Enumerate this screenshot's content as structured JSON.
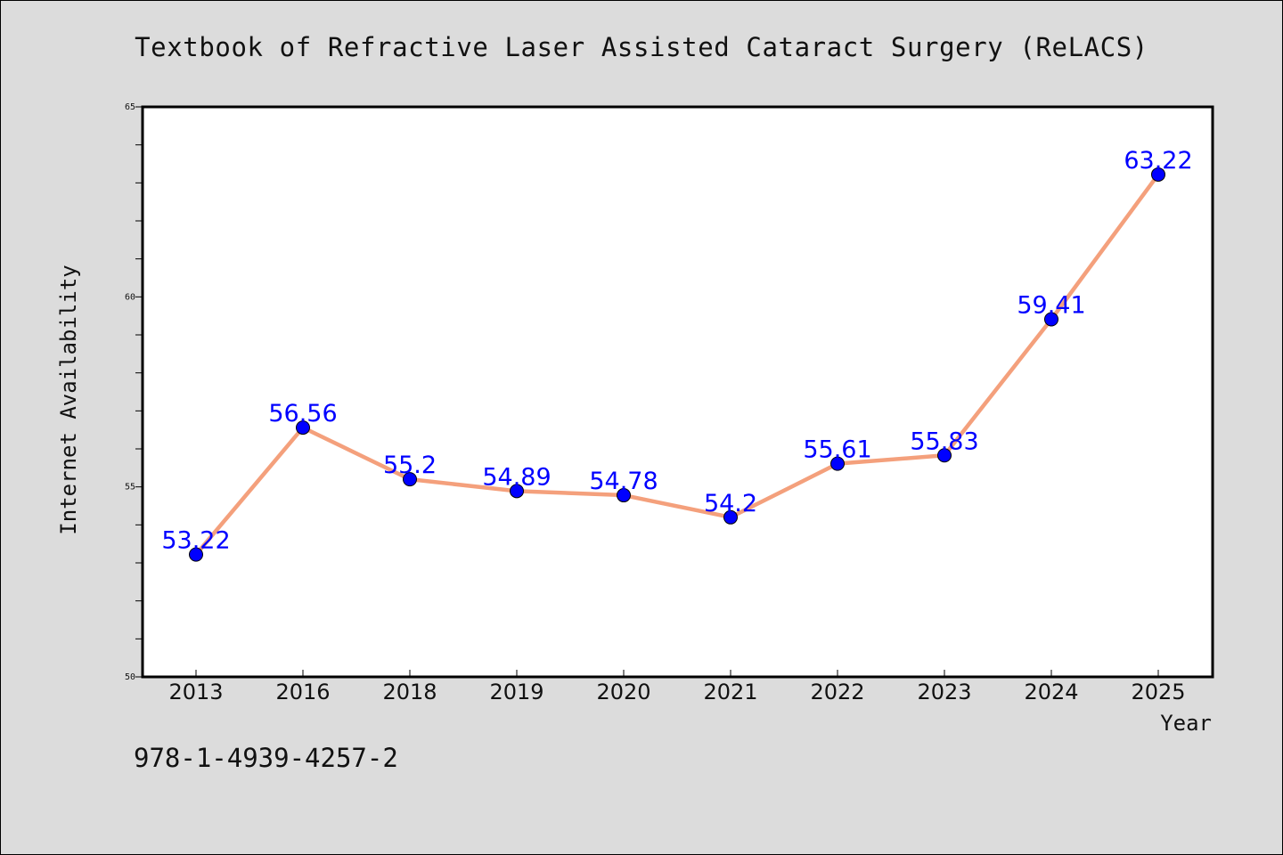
{
  "title": "Textbook of Refractive Laser Assisted Cataract Surgery (ReLACS)",
  "footer_code": "978-1-4939-4257-2",
  "chart_data": {
    "type": "line",
    "title": "Textbook of Refractive Laser Assisted Cataract Surgery (ReLACS)",
    "xlabel": "Year",
    "ylabel": "Internet Availability",
    "categories": [
      "2013",
      "2016",
      "2018",
      "2019",
      "2020",
      "2021",
      "2022",
      "2023",
      "2024",
      "2025"
    ],
    "values": [
      53.22,
      56.56,
      55.2,
      54.89,
      54.78,
      54.2,
      55.61,
      55.83,
      59.41,
      63.22
    ],
    "data_labels": [
      "53.22",
      "56.56",
      "55.2",
      "54.89",
      "54.78",
      "54.2",
      "55.61",
      "55.83",
      "59.41",
      "63.22"
    ],
    "ylim": [
      50,
      65
    ],
    "y_major_ticks": [
      50,
      55,
      60,
      65
    ],
    "y_major_tick_labels": [
      "50",
      "55",
      "60",
      "65"
    ],
    "grid": false,
    "legend": "none",
    "line_color": "#f4a07c",
    "marker_color": "#0000ff",
    "label_color": "#0000ff",
    "background": "#dcdcdc",
    "plot_background": "#ffffff"
  }
}
